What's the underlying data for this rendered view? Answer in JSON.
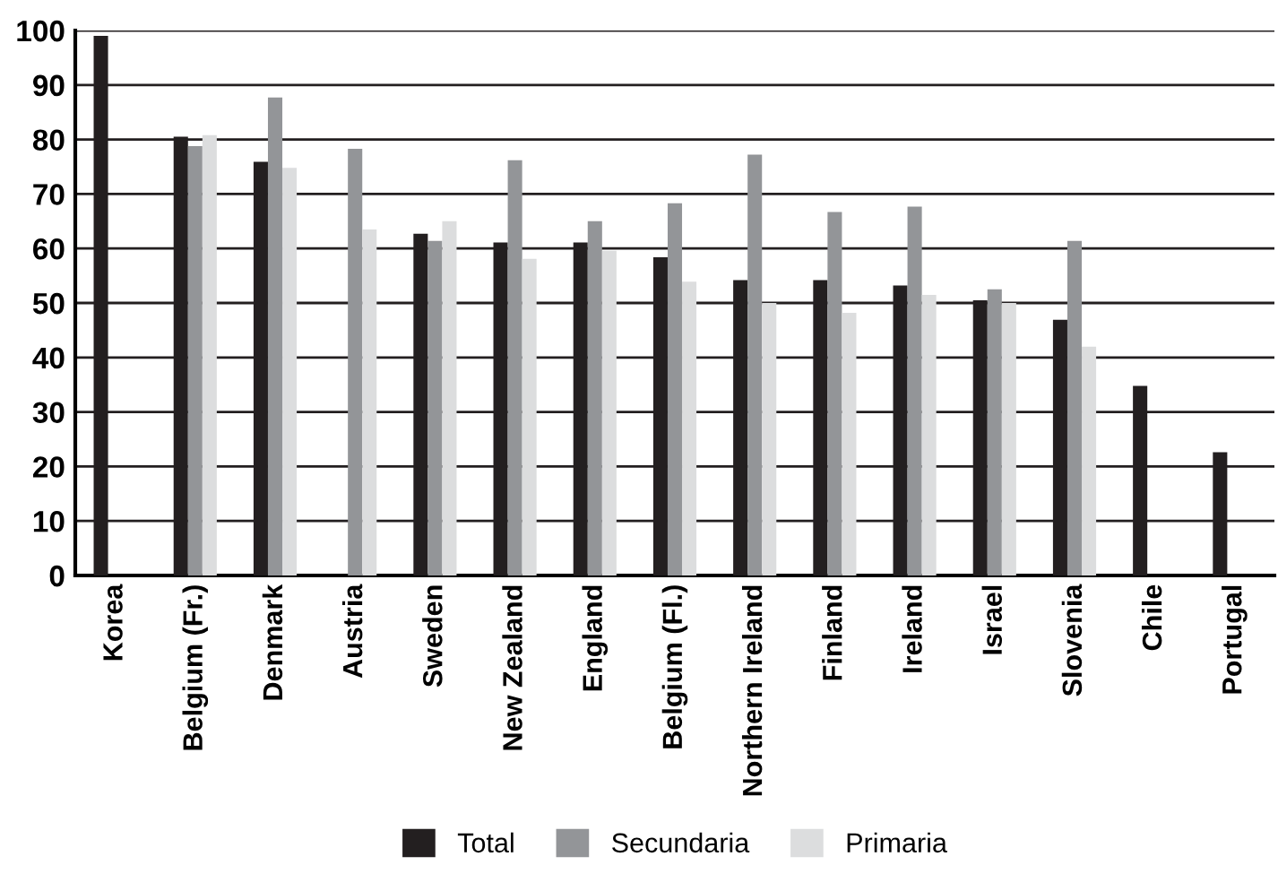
{
  "chart_data": {
    "type": "bar",
    "categories": [
      "Korea",
      "Belgium (Fr.)",
      "Denmark",
      "Austria",
      "Sweden",
      "New Zealand",
      "England",
      "Belgium (Fl.)",
      "Northern Ireland",
      "Finland",
      "Ireland",
      "Israel",
      "Slovenia",
      "Chile",
      "Portugal"
    ],
    "series": [
      {
        "name": "Total",
        "color": "#231f20",
        "values": [
          99,
          80.5,
          75.9,
          null,
          62.7,
          61.1,
          61.1,
          58.4,
          54.2,
          54.2,
          53.2,
          50.5,
          46.9,
          34.8,
          22.6
        ]
      },
      {
        "name": "Secundaria",
        "color": "#939598",
        "values": [
          null,
          78.8,
          87.7,
          78.3,
          61.4,
          76.2,
          65,
          68.3,
          77.2,
          66.7,
          67.7,
          52.5,
          61.4,
          null,
          null
        ]
      },
      {
        "name": "Primaria",
        "color": "#dcddde",
        "values": [
          null,
          80.8,
          74.8,
          63.5,
          65,
          58.1,
          59.6,
          53.9,
          50,
          48.2,
          51.5,
          50,
          42,
          null,
          null
        ]
      }
    ],
    "ylim": [
      0,
      100
    ],
    "yticks": [
      0,
      10,
      20,
      30,
      40,
      50,
      60,
      70,
      80,
      90,
      100
    ],
    "grid": "y",
    "legend": "bottom"
  }
}
